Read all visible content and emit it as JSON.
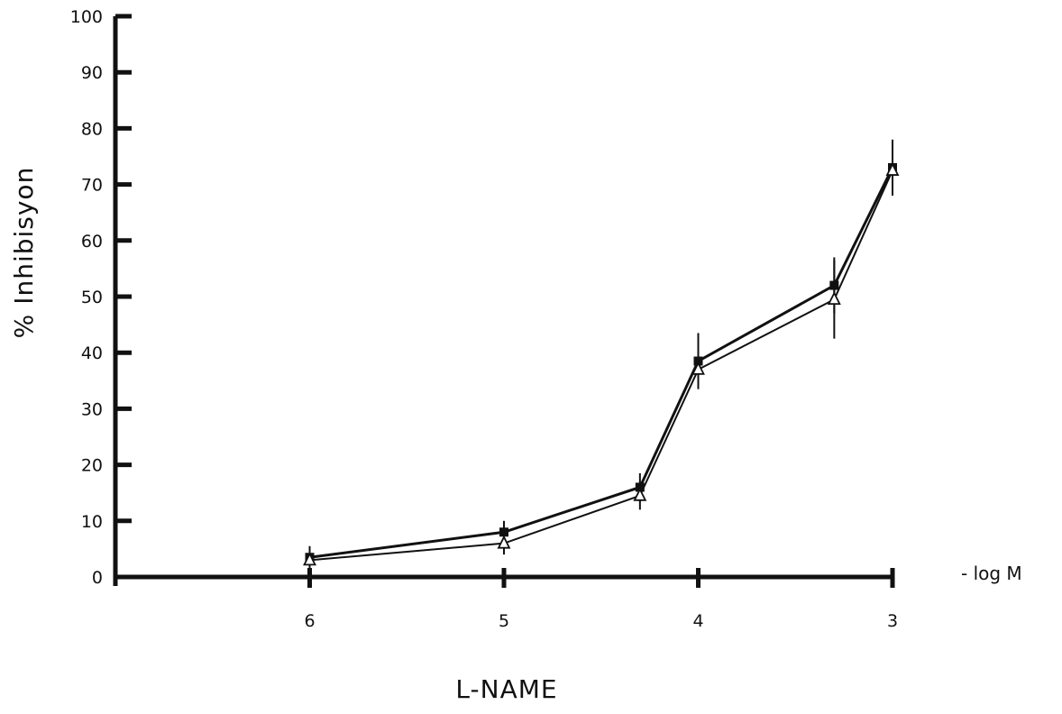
{
  "chart_data": {
    "type": "line",
    "title": "",
    "xlabel": "L-NAME",
    "x_unit_label": "- log M",
    "ylabel": "% Inhibisyon",
    "x": [
      6,
      5,
      4.3,
      4,
      3.3,
      3
    ],
    "x_ticks": [
      6,
      5,
      4,
      3
    ],
    "x_tick_labels": [
      "6",
      "5",
      "4",
      "3"
    ],
    "xlim": [
      7,
      3
    ],
    "ylim": [
      0,
      100
    ],
    "y_ticks": [
      0,
      10,
      20,
      30,
      40,
      50,
      60,
      70,
      80,
      90,
      100
    ],
    "y_tick_labels": [
      "0",
      "10",
      "20",
      "30",
      "40",
      "50",
      "60",
      "70",
      "80",
      "90",
      "100"
    ],
    "grid": false,
    "series": [
      {
        "marker": "filled-square",
        "color": "#111111",
        "values": [
          3.5,
          8,
          16,
          38.5,
          52,
          73
        ],
        "error": [
          2,
          2,
          2.5,
          5,
          5,
          5
        ]
      },
      {
        "marker": "open-triangle",
        "color": "#111111",
        "values": [
          3,
          6,
          14.5,
          37,
          49.5,
          72.5
        ],
        "error": [
          2,
          2,
          2.5,
          3,
          7,
          3
        ]
      }
    ]
  }
}
